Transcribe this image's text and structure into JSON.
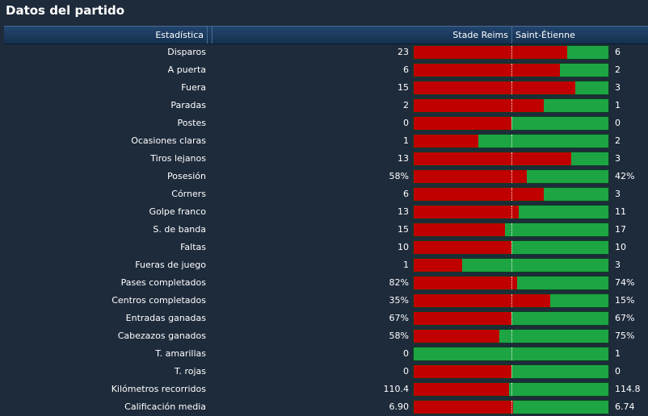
{
  "title": "Datos del partido",
  "header": {
    "stat": "Estadística",
    "home": "Stade Reims",
    "away": "Saint-Étienne"
  },
  "colors": {
    "home": "#c00000",
    "away": "#1da544"
  },
  "rows": [
    {
      "label": "Disparos",
      "home": "23",
      "away": "6",
      "home_share": 0.79
    },
    {
      "label": "A puerta",
      "home": "6",
      "away": "2",
      "home_share": 0.75
    },
    {
      "label": "Fuera",
      "home": "15",
      "away": "3",
      "home_share": 0.83
    },
    {
      "label": "Paradas",
      "home": "2",
      "away": "1",
      "home_share": 0.67
    },
    {
      "label": "Postes",
      "home": "0",
      "away": "0",
      "home_share": 0.5
    },
    {
      "label": "Ocasiones claras",
      "home": "1",
      "away": "2",
      "home_share": 0.33
    },
    {
      "label": "Tiros lejanos",
      "home": "13",
      "away": "3",
      "home_share": 0.81
    },
    {
      "label": "Posesión",
      "home": "58%",
      "away": "42%",
      "home_share": 0.58
    },
    {
      "label": "Córners",
      "home": "6",
      "away": "3",
      "home_share": 0.67
    },
    {
      "label": "Golpe franco",
      "home": "13",
      "away": "11",
      "home_share": 0.54
    },
    {
      "label": "S. de banda",
      "home": "15",
      "away": "17",
      "home_share": 0.47
    },
    {
      "label": "Faltas",
      "home": "10",
      "away": "10",
      "home_share": 0.5
    },
    {
      "label": "Fueras de juego",
      "home": "1",
      "away": "3",
      "home_share": 0.25
    },
    {
      "label": "Pases completados",
      "home": "82%",
      "away": "74%",
      "home_share": 0.53
    },
    {
      "label": "Centros completados",
      "home": "35%",
      "away": "15%",
      "home_share": 0.7
    },
    {
      "label": "Entradas ganadas",
      "home": "67%",
      "away": "67%",
      "home_share": 0.5
    },
    {
      "label": "Cabezazos ganados",
      "home": "58%",
      "away": "75%",
      "home_share": 0.44
    },
    {
      "label": "T. amarillas",
      "home": "0",
      "away": "1",
      "home_share": 0.0
    },
    {
      "label": "T. rojas",
      "home": "0",
      "away": "0",
      "home_share": 0.5
    },
    {
      "label": "Kilómetros recorridos",
      "home": "110.4",
      "away": "114.8",
      "home_share": 0.49
    },
    {
      "label": "Calificación media",
      "home": "6.90",
      "away": "6.74",
      "home_share": 0.51
    }
  ]
}
